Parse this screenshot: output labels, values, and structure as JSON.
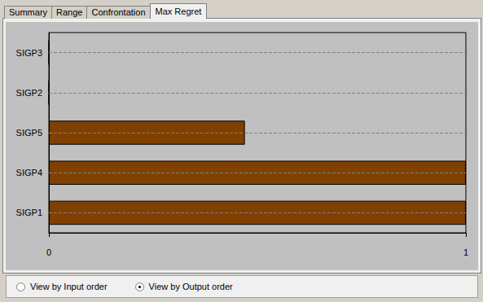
{
  "chart_data": {
    "type": "bar",
    "orientation": "horizontal",
    "categories": [
      "SIGP1",
      "SIGP4",
      "SIGP5",
      "SIGP2",
      "SIGP3"
    ],
    "values": [
      1,
      1,
      0.47,
      0,
      0
    ],
    "color": "#804000",
    "xlim": [
      0,
      1
    ],
    "xticks": [
      0,
      1
    ],
    "grid": true
  },
  "tabs": {
    "items": [
      "Summary",
      "Range",
      "Confrontation",
      "Max Regret"
    ],
    "active": "Max Regret"
  },
  "view_options": {
    "items": [
      "View by Input order",
      "View by Output order"
    ],
    "selected": "View by Output order"
  }
}
